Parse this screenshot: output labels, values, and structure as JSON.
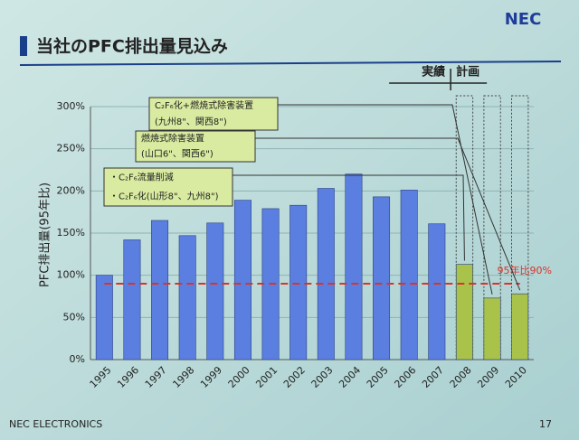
{
  "chart_data": {
    "type": "bar",
    "title": "当社のPFC排出量見込み",
    "logo": "NEC",
    "footer": "NEC ELECTRONICS",
    "page_number": "17",
    "y_label": "PFC排出量(95年比)",
    "categories": [
      "1995",
      "1996",
      "1997",
      "1998",
      "1999",
      "2000",
      "2001",
      "2002",
      "2003",
      "2004",
      "2005",
      "2006",
      "2007",
      "2008",
      "2009",
      "2010"
    ],
    "series": [
      {
        "name": "実績",
        "color": "#5b7fe0",
        "values": [
          100,
          142,
          165,
          147,
          162,
          189,
          179,
          183,
          203,
          220,
          193,
          201,
          161,
          null,
          null,
          null
        ]
      },
      {
        "name": "計画",
        "color": "#a9c24a",
        "values": [
          null,
          null,
          null,
          null,
          null,
          null,
          null,
          null,
          null,
          null,
          null,
          null,
          null,
          113,
          73,
          78
        ]
      }
    ],
    "ylim": [
      0,
      300
    ],
    "yticks": [
      {
        "value": 0,
        "label": "0%"
      },
      {
        "value": 50,
        "label": "50%"
      },
      {
        "value": 100,
        "label": "100%"
      },
      {
        "value": 150,
        "label": "150%"
      },
      {
        "value": 200,
        "label": "200%"
      },
      {
        "value": 250,
        "label": "250%"
      },
      {
        "value": 300,
        "label": "300%"
      }
    ],
    "grid": true,
    "reference_line": {
      "value": 90,
      "label": "95年比90%",
      "color": "#d9342b"
    },
    "annotations": [
      {
        "lines": [
          "C₂F₆化+燃焼式除害装置",
          "(九州8\"、関西8\")"
        ]
      },
      {
        "lines": [
          "燃焼式除害装置",
          "(山口6\"、関西6\")"
        ]
      },
      {
        "lines": [
          "・C₂F₆流量削減",
          "・C₂F₆化(山形8\"、九州8\")"
        ]
      }
    ]
  }
}
